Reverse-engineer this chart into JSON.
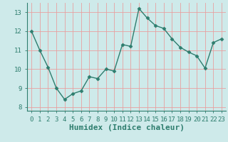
{
  "x": [
    0,
    1,
    2,
    3,
    4,
    5,
    6,
    7,
    8,
    9,
    10,
    11,
    12,
    13,
    14,
    15,
    16,
    17,
    18,
    19,
    20,
    21,
    22,
    23
  ],
  "y": [
    12.0,
    11.0,
    10.1,
    9.0,
    8.4,
    8.7,
    8.85,
    9.6,
    9.5,
    10.0,
    9.9,
    11.3,
    11.2,
    13.2,
    12.7,
    12.3,
    12.15,
    11.6,
    11.15,
    10.9,
    10.7,
    10.05,
    11.4,
    11.6
  ],
  "line_color": "#2e7d6e",
  "marker": "D",
  "marker_size": 2.5,
  "bg_color": "#ceeaea",
  "grid_color": "#e8a0a0",
  "xlabel": "Humidex (Indice chaleur)",
  "xlim": [
    -0.5,
    23.5
  ],
  "ylim": [
    7.8,
    13.5
  ],
  "yticks": [
    8,
    9,
    10,
    11,
    12,
    13
  ],
  "xticks": [
    0,
    1,
    2,
    3,
    4,
    5,
    6,
    7,
    8,
    9,
    10,
    11,
    12,
    13,
    14,
    15,
    16,
    17,
    18,
    19,
    20,
    21,
    22,
    23
  ],
  "font_color": "#2e7d6e",
  "tick_fontsize": 6.5,
  "xlabel_fontsize": 8
}
